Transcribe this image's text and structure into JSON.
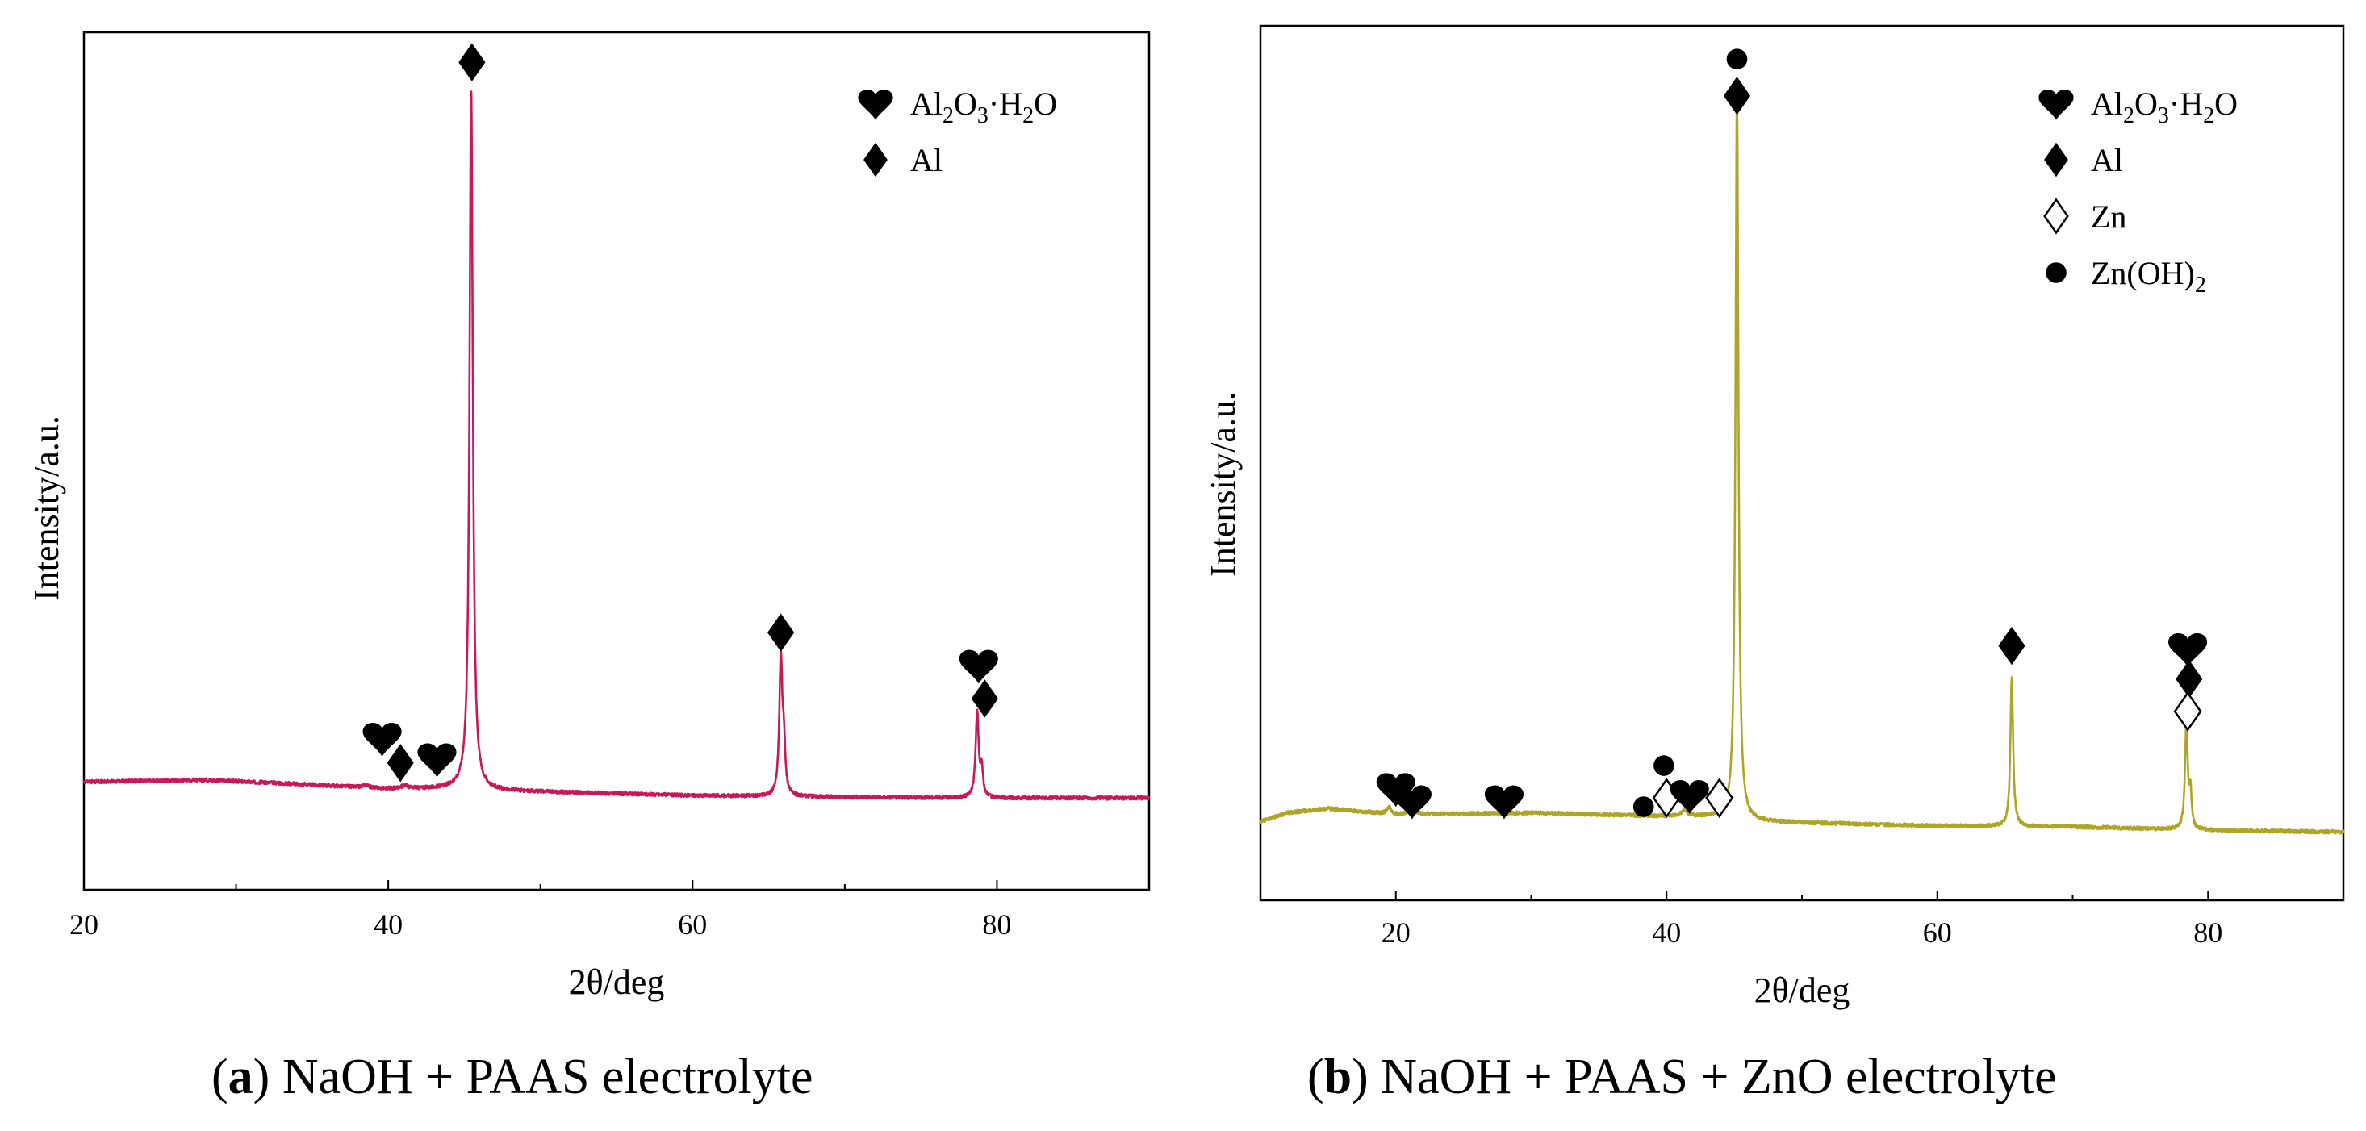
{
  "chart_data": [
    {
      "type": "line",
      "panel_id": "a",
      "caption_letter": "a",
      "caption_text": "NaOH + PAAS electrolyte",
      "xlabel": "2θ/deg",
      "ylabel": "Intensity/a.u.",
      "xlim": [
        20,
        90
      ],
      "ylim": [
        0,
        1
      ],
      "xticks": [
        20,
        40,
        60,
        80
      ],
      "line_color": "#c8185a",
      "series": [
        {
          "name": "XRD pattern",
          "baseline": [
            [
              20,
              0.126
            ],
            [
              28,
              0.128
            ],
            [
              32,
              0.125
            ],
            [
              40,
              0.118
            ],
            [
              44,
              0.118
            ],
            [
              46,
              0.116
            ],
            [
              60,
              0.11
            ],
            [
              70,
              0.108
            ],
            [
              80,
              0.107
            ],
            [
              90,
              0.107
            ]
          ],
          "peaks": [
            {
              "x": 45.45,
              "height": 0.82,
              "width": 0.13
            },
            {
              "x": 65.8,
              "height": 0.16,
              "width": 0.12
            },
            {
              "x": 66.0,
              "height": 0.05,
              "width": 0.1
            },
            {
              "x": 78.7,
              "height": 0.1,
              "width": 0.12
            },
            {
              "x": 79.0,
              "height": 0.03,
              "width": 0.1
            },
            {
              "x": 38.5,
              "height": 0.003,
              "width": 0.2
            },
            {
              "x": 41.1,
              "height": 0.004,
              "width": 0.2
            }
          ]
        }
      ],
      "markers": [
        {
          "x": 45.5,
          "y": 0.965,
          "symbol": "diamond"
        },
        {
          "x": 39.6,
          "y": 0.177,
          "symbol": "heart"
        },
        {
          "x": 40.8,
          "y": 0.148,
          "symbol": "diamond"
        },
        {
          "x": 43.2,
          "y": 0.153,
          "symbol": "heart"
        },
        {
          "x": 65.8,
          "y": 0.3,
          "symbol": "diamond"
        },
        {
          "x": 78.8,
          "y": 0.262,
          "symbol": "heart"
        },
        {
          "x": 79.2,
          "y": 0.223,
          "symbol": "diamond"
        }
      ],
      "legend": [
        {
          "symbol": "heart",
          "parts": [
            [
              "Al",
              ""
            ],
            [
              "2",
              "sub"
            ],
            [
              "O",
              ""
            ],
            [
              "3",
              "sub"
            ],
            [
              "·H",
              ""
            ],
            [
              "2",
              "sub"
            ],
            [
              "O",
              ""
            ]
          ]
        },
        {
          "symbol": "diamond",
          "parts": [
            [
              "Al",
              ""
            ]
          ]
        }
      ]
    },
    {
      "type": "line",
      "panel_id": "b",
      "caption_letter": "b",
      "caption_text": "NaOH + PAAS + ZnO electrolyte",
      "xlabel": "2θ/deg",
      "ylabel": "Intensity/a.u.",
      "xlim": [
        10,
        90
      ],
      "ylim": [
        0,
        1
      ],
      "xticks": [
        20,
        40,
        60,
        80
      ],
      "line_color": "#aea526",
      "series": [
        {
          "name": "XRD pattern",
          "baseline": [
            [
              10,
              0.09
            ],
            [
              12,
              0.1
            ],
            [
              15,
              0.105
            ],
            [
              20,
              0.098
            ],
            [
              30,
              0.1
            ],
            [
              40,
              0.096
            ],
            [
              44,
              0.095
            ],
            [
              46,
              0.09
            ],
            [
              60,
              0.085
            ],
            [
              70,
              0.084
            ],
            [
              80,
              0.08
            ],
            [
              90,
              0.078
            ]
          ],
          "peaks": [
            {
              "x": 45.2,
              "height": 0.83,
              "width": 0.13
            },
            {
              "x": 65.5,
              "height": 0.17,
              "width": 0.12
            },
            {
              "x": 78.4,
              "height": 0.12,
              "width": 0.12
            },
            {
              "x": 78.7,
              "height": 0.04,
              "width": 0.1
            },
            {
              "x": 19.5,
              "height": 0.008,
              "width": 0.2
            },
            {
              "x": 21.2,
              "height": 0.01,
              "width": 0.2
            },
            {
              "x": 41.3,
              "height": 0.007,
              "width": 0.25
            }
          ]
        }
      ],
      "markers": [
        {
          "x": 45.2,
          "y": 0.962,
          "symbol": "circle"
        },
        {
          "x": 45.2,
          "y": 0.92,
          "symbol": "diamond"
        },
        {
          "x": 20.0,
          "y": 0.128,
          "symbol": "heart"
        },
        {
          "x": 21.2,
          "y": 0.114,
          "symbol": "heart"
        },
        {
          "x": 28.0,
          "y": 0.114,
          "symbol": "heart"
        },
        {
          "x": 38.3,
          "y": 0.107,
          "symbol": "circle"
        },
        {
          "x": 39.8,
          "y": 0.154,
          "symbol": "circle"
        },
        {
          "x": 40.0,
          "y": 0.117,
          "symbol": "diamond-open"
        },
        {
          "x": 41.7,
          "y": 0.12,
          "symbol": "heart"
        },
        {
          "x": 43.9,
          "y": 0.117,
          "symbol": "diamond-open"
        },
        {
          "x": 65.5,
          "y": 0.291,
          "symbol": "diamond"
        },
        {
          "x": 78.5,
          "y": 0.288,
          "symbol": "heart"
        },
        {
          "x": 78.6,
          "y": 0.253,
          "symbol": "diamond"
        },
        {
          "x": 78.5,
          "y": 0.216,
          "symbol": "diamond-open"
        }
      ],
      "legend": [
        {
          "symbol": "heart",
          "parts": [
            [
              "Al",
              ""
            ],
            [
              "2",
              "sub"
            ],
            [
              "O",
              ""
            ],
            [
              "3",
              "sub"
            ],
            [
              "·H",
              ""
            ],
            [
              "2",
              "sub"
            ],
            [
              "O",
              ""
            ]
          ]
        },
        {
          "symbol": "diamond",
          "parts": [
            [
              "Al",
              ""
            ]
          ]
        },
        {
          "symbol": "diamond-open",
          "parts": [
            [
              "Zn",
              ""
            ]
          ]
        },
        {
          "symbol": "circle",
          "parts": [
            [
              "Zn(OH)",
              ""
            ],
            [
              "2",
              "sub"
            ]
          ]
        }
      ]
    }
  ]
}
